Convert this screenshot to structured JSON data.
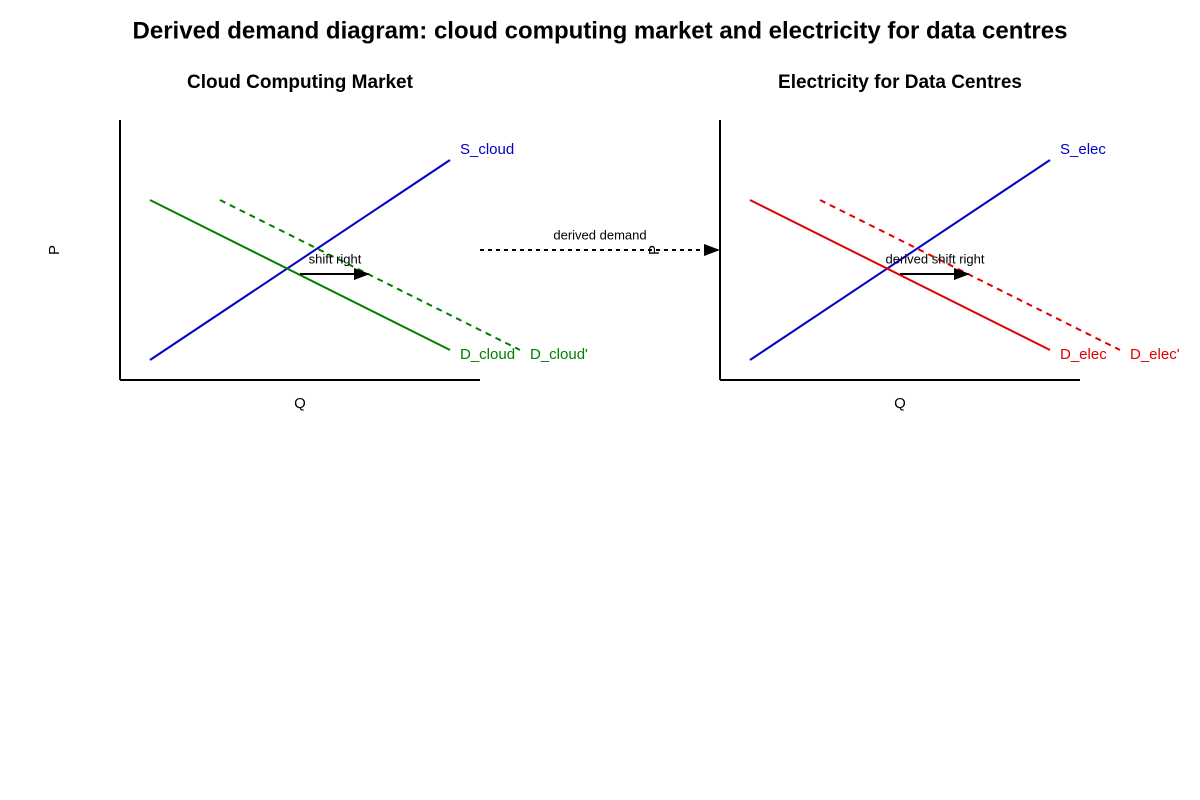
{
  "title": "Derived demand diagram: cloud computing market and electricity for data centres",
  "panels": [
    {
      "title": "Cloud Computing Market",
      "y_label": "P",
      "x_label": "Q",
      "lines": [
        {
          "label": "S_cloud"
        },
        {
          "label": "D_cloud"
        },
        {
          "label": "D_cloud'"
        }
      ],
      "annotation": "shift right"
    },
    {
      "title": "Electricity for Data Centres",
      "y_label": "P",
      "x_label": "Q",
      "lines": [
        {
          "label": "S_elec"
        },
        {
          "label": "D_elec"
        },
        {
          "label": "D_elec'"
        }
      ],
      "annotation": "derived shift right"
    }
  ],
  "link": {
    "label": "derived demand"
  }
}
